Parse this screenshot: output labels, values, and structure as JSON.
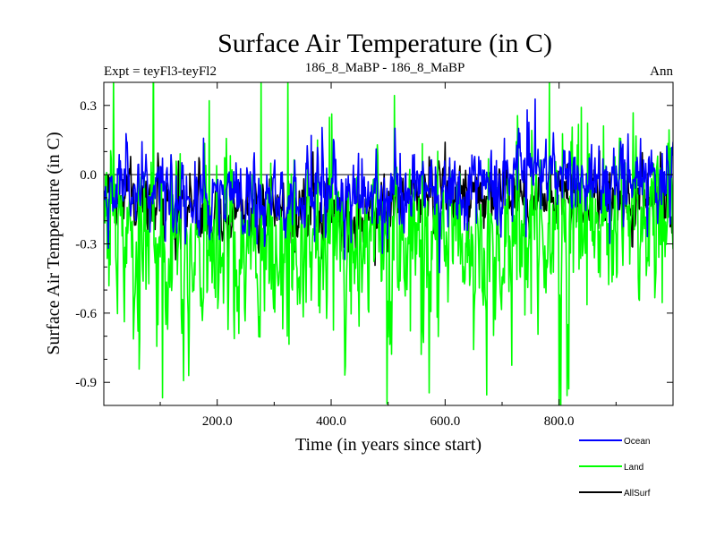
{
  "chart_data": {
    "type": "line",
    "title": "Surface Air Temperature (in C)",
    "subtitle_left": "Expt = teyFl3-teyFl2",
    "subtitle_center": "186_8_MaBP - 186_8_MaBP",
    "subtitle_right": "Ann",
    "xlabel": "Time (in years since start)",
    "ylabel": "Surface Air Temperature (in C)",
    "xlim": [
      1,
      1000
    ],
    "ylim": [
      -1.0,
      0.4
    ],
    "x_ticks": [
      200,
      400,
      600,
      800
    ],
    "x_tick_labels": [
      "200.0",
      "400.0",
      "600.0",
      "800.0"
    ],
    "y_ticks": [
      0.3,
      0.0,
      -0.3,
      -0.6,
      -0.9
    ],
    "y_tick_labels": [
      "0.3",
      "0.0",
      "-0.3",
      "-0.6",
      "-0.9"
    ],
    "zero_line": 0.0,
    "series": [
      {
        "name": "Ocean",
        "color": "#0000ff",
        "generator": {
          "n": 1000,
          "mean": -0.04,
          "noise": 0.07,
          "spike": 0.07,
          "seed": 11
        },
        "segments": [
          {
            "start": 1,
            "end": 120,
            "mean": -0.05
          },
          {
            "start": 120,
            "end": 300,
            "mean": -0.1
          },
          {
            "start": 300,
            "end": 500,
            "mean": -0.09
          },
          {
            "start": 500,
            "end": 700,
            "mean": -0.05
          },
          {
            "start": 700,
            "end": 1000,
            "mean": -0.01
          }
        ]
      },
      {
        "name": "Land",
        "color": "#00ff00",
        "generator": {
          "n": 1000,
          "mean": -0.3,
          "noise": 0.15,
          "spike": 0.22,
          "seed": 29
        },
        "segments": [
          {
            "start": 1,
            "end": 100,
            "mean": -0.28
          },
          {
            "start": 100,
            "end": 450,
            "mean": -0.35
          },
          {
            "start": 450,
            "end": 700,
            "mean": -0.28
          },
          {
            "start": 700,
            "end": 1000,
            "mean": -0.22
          }
        ]
      },
      {
        "name": "AllSurf",
        "color": "#000000",
        "generator": {
          "n": 1000,
          "mean": -0.12,
          "noise": 0.06,
          "spike": 0.04,
          "seed": 47
        },
        "segments": [
          {
            "start": 1,
            "end": 120,
            "mean": -0.12
          },
          {
            "start": 120,
            "end": 500,
            "mean": -0.18
          },
          {
            "start": 500,
            "end": 1000,
            "mean": -0.09
          }
        ]
      }
    ],
    "legend_position": "bottom-right"
  }
}
